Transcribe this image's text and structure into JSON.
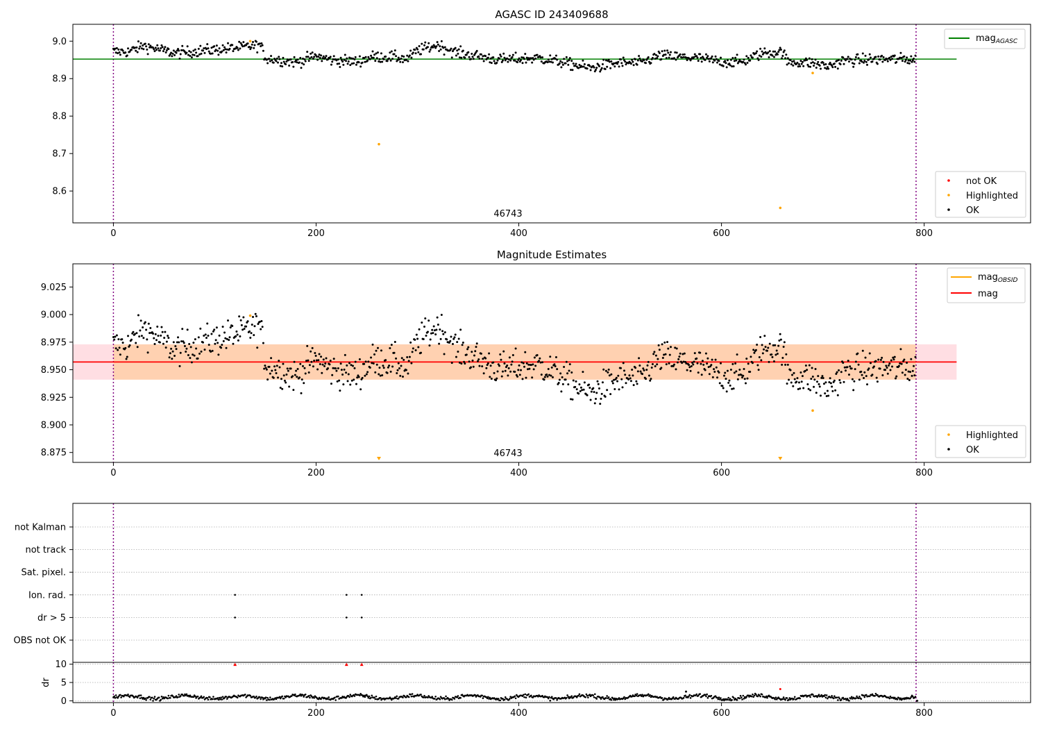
{
  "chart_data": [
    {
      "type": "scatter",
      "title": "AGASC ID 243409688",
      "xlim": [
        -40,
        905
      ],
      "ylim": [
        8.515,
        9.045
      ],
      "xticks": [
        0,
        200,
        400,
        600,
        800
      ],
      "yticks": [
        9.0,
        8.9,
        8.8,
        8.7,
        8.6
      ],
      "ytick_labels": [
        "9.0",
        "8.9",
        "8.8",
        "8.7",
        "8.6"
      ],
      "vlines": [
        0,
        792
      ],
      "hline": {
        "y": 8.952,
        "x_end": 832,
        "color": "#008000"
      },
      "annotation": {
        "text": "46743",
        "x": 395
      },
      "legend_line": {
        "label": "mag",
        "sub": "AGASC",
        "color": "#008000"
      },
      "legend_points": [
        {
          "label": "not OK",
          "color": "#ff0000"
        },
        {
          "label": "Highlighted",
          "color": "#ffa500"
        },
        {
          "label": "OK",
          "color": "#000000"
        }
      ],
      "highlighted": [
        [
          135,
          9.0
        ],
        [
          262,
          8.725
        ],
        [
          658,
          8.555
        ],
        [
          690,
          8.915
        ]
      ]
    },
    {
      "type": "scatter",
      "title": "Magnitude Estimates",
      "xlim": [
        -40,
        905
      ],
      "ylim": [
        8.866,
        9.046
      ],
      "xticks": [
        0,
        200,
        400,
        600,
        800
      ],
      "yticks": [
        9.025,
        9.0,
        8.975,
        8.95,
        8.925,
        8.9,
        8.875
      ],
      "ytick_labels": [
        "9.025",
        "9.000",
        "8.975",
        "8.950",
        "8.925",
        "8.900",
        "8.875"
      ],
      "vlines": [
        0,
        792
      ],
      "mean": 8.957,
      "band": [
        8.941,
        8.973
      ],
      "band_x_end": 832,
      "annotation": {
        "text": "46743",
        "x": 395
      },
      "legend_lines": [
        {
          "label": "mag",
          "sub": "OBSID",
          "color": "#ffa500"
        },
        {
          "label": "mag",
          "sub": "",
          "color": "#ff0000"
        }
      ],
      "legend_points": [
        {
          "label": "Highlighted",
          "color": "#ffa500"
        },
        {
          "label": "OK",
          "color": "#000000"
        }
      ],
      "highlighted": [
        [
          135,
          8.999
        ],
        [
          690,
          8.913
        ]
      ],
      "offscale_markers": [
        262,
        658
      ]
    },
    {
      "type": "scatter",
      "xlim": [
        -40,
        905
      ],
      "xticks": [
        0,
        200,
        400,
        600,
        800
      ],
      "vlines": [
        0,
        792
      ],
      "flag_categories": [
        "not Kalman",
        "not track",
        "Sat. pixel.",
        "Ion. rad.",
        "dr > 5",
        "OBS not OK"
      ],
      "flag_points": [
        [
          120,
          "Ion. rad."
        ],
        [
          230,
          "Ion. rad."
        ],
        [
          245,
          "Ion. rad."
        ],
        [
          120,
          "dr > 5"
        ],
        [
          230,
          "dr > 5"
        ],
        [
          245,
          "dr > 5"
        ]
      ],
      "dr_ylabel": "dr",
      "dr_ylim": [
        -0.5,
        10.5
      ],
      "dr_yticks": [
        10,
        5,
        0
      ],
      "dr_ytick_labels": [
        "10",
        "5",
        "0"
      ],
      "dr_red_points": [
        [
          120,
          10
        ],
        [
          230,
          10
        ],
        [
          245,
          10
        ],
        [
          658,
          3.2
        ]
      ],
      "dr_outliers": [
        [
          565,
          2.5
        ],
        [
          793,
          0
        ]
      ]
    }
  ]
}
